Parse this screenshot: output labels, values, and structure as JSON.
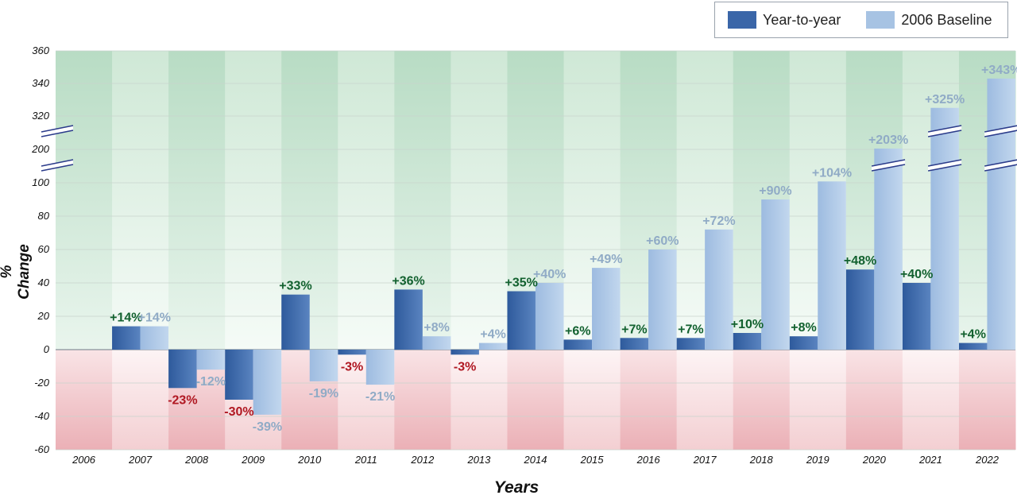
{
  "chart_data": {
    "type": "bar",
    "xlabel": "Years",
    "ylabel": "% Change",
    "categories": [
      "2006",
      "2007",
      "2008",
      "2009",
      "2010",
      "2011",
      "2012",
      "2013",
      "2014",
      "2015",
      "2016",
      "2017",
      "2018",
      "2019",
      "2020",
      "2021",
      "2022"
    ],
    "series": [
      {
        "name": "Year-to-year",
        "values": [
          null,
          14,
          -23,
          -30,
          33,
          -3,
          36,
          -3,
          35,
          6,
          7,
          7,
          10,
          8,
          48,
          40,
          4
        ],
        "labels": [
          "",
          "+14%",
          "-23%",
          "-30%",
          "+33%",
          "-3%",
          "+36%",
          "-3%",
          "+35%",
          "+6%",
          "+7%",
          "+7%",
          "+10%",
          "+8%",
          "+48%",
          "+40%",
          "+4%"
        ],
        "color": "#3a66a8"
      },
      {
        "name": "2006 Baseline",
        "values": [
          null,
          14,
          -12,
          -39,
          -19,
          -21,
          8,
          4,
          40,
          49,
          60,
          72,
          90,
          104,
          203,
          325,
          343
        ],
        "labels": [
          "",
          "+14%",
          "-12%",
          "-39%",
          "-19%",
          "-21%",
          "+8%",
          "+4%",
          "+40%",
          "+49%",
          "+60%",
          "+72%",
          "+90%",
          "+104%",
          "+203%",
          "+325%",
          "+343%"
        ],
        "color": "#a7c3e3"
      }
    ],
    "yticks": [
      "360",
      "340",
      "320",
      "200",
      "100",
      "80",
      "60",
      "40",
      "20",
      "0",
      "-20",
      "-40",
      "-60"
    ],
    "axis_breaks": [
      "100-200",
      "200-320"
    ],
    "ylim": [
      -60,
      360
    ],
    "positive_label_color": "#12612f",
    "negative_label_color": "#b01822",
    "baseline_label_color": "#90abc6",
    "grid": true,
    "legend_position": "top-right"
  }
}
